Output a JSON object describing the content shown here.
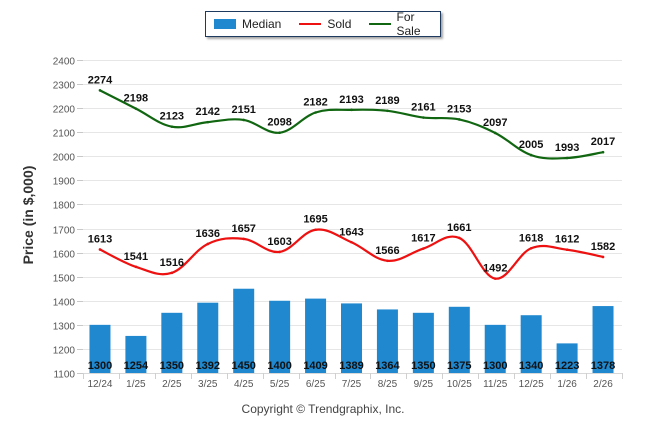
{
  "chart_data": {
    "type": "bar",
    "title": "",
    "xlabel": "",
    "ylabel": "Price (in $,000)",
    "ylim": [
      1100,
      2400
    ],
    "yticks": [
      1100,
      1200,
      1300,
      1400,
      1500,
      1600,
      1700,
      1800,
      1900,
      2000,
      2100,
      2200,
      2300,
      2400
    ],
    "grid": true,
    "legend_position": "top-center",
    "categories": [
      "12/24",
      "1/25",
      "2/25",
      "3/25",
      "4/25",
      "5/25",
      "6/25",
      "7/25",
      "8/25",
      "9/25",
      "10/25",
      "11/25",
      "12/25",
      "1/26",
      "2/26"
    ],
    "series": [
      {
        "name": "Median",
        "type": "bar",
        "color": "#1f88cf",
        "values": [
          1300,
          1254,
          1350,
          1392,
          1450,
          1400,
          1409,
          1389,
          1364,
          1350,
          1375,
          1300,
          1340,
          1223,
          1378
        ]
      },
      {
        "name": "Sold",
        "type": "line",
        "color": "#ee1111",
        "values": [
          1613,
          1541,
          1516,
          1636,
          1657,
          1603,
          1695,
          1643,
          1566,
          1617,
          1661,
          1492,
          1618,
          1612,
          1582
        ]
      },
      {
        "name": "For Sale",
        "type": "line",
        "color": "#116611",
        "values": [
          2274,
          2198,
          2123,
          2142,
          2151,
          2098,
          2182,
          2193,
          2189,
          2161,
          2153,
          2097,
          2005,
          1993,
          2017
        ]
      }
    ]
  },
  "legend": {
    "items": [
      {
        "label": "Median",
        "color": "#1f88cf",
        "kind": "box"
      },
      {
        "label": "Sold",
        "color": "#ee1111",
        "kind": "line"
      },
      {
        "label": "For Sale",
        "color": "#116611",
        "kind": "line"
      }
    ]
  },
  "footer": {
    "copyright": "Copyright © Trendgraphix, Inc."
  }
}
